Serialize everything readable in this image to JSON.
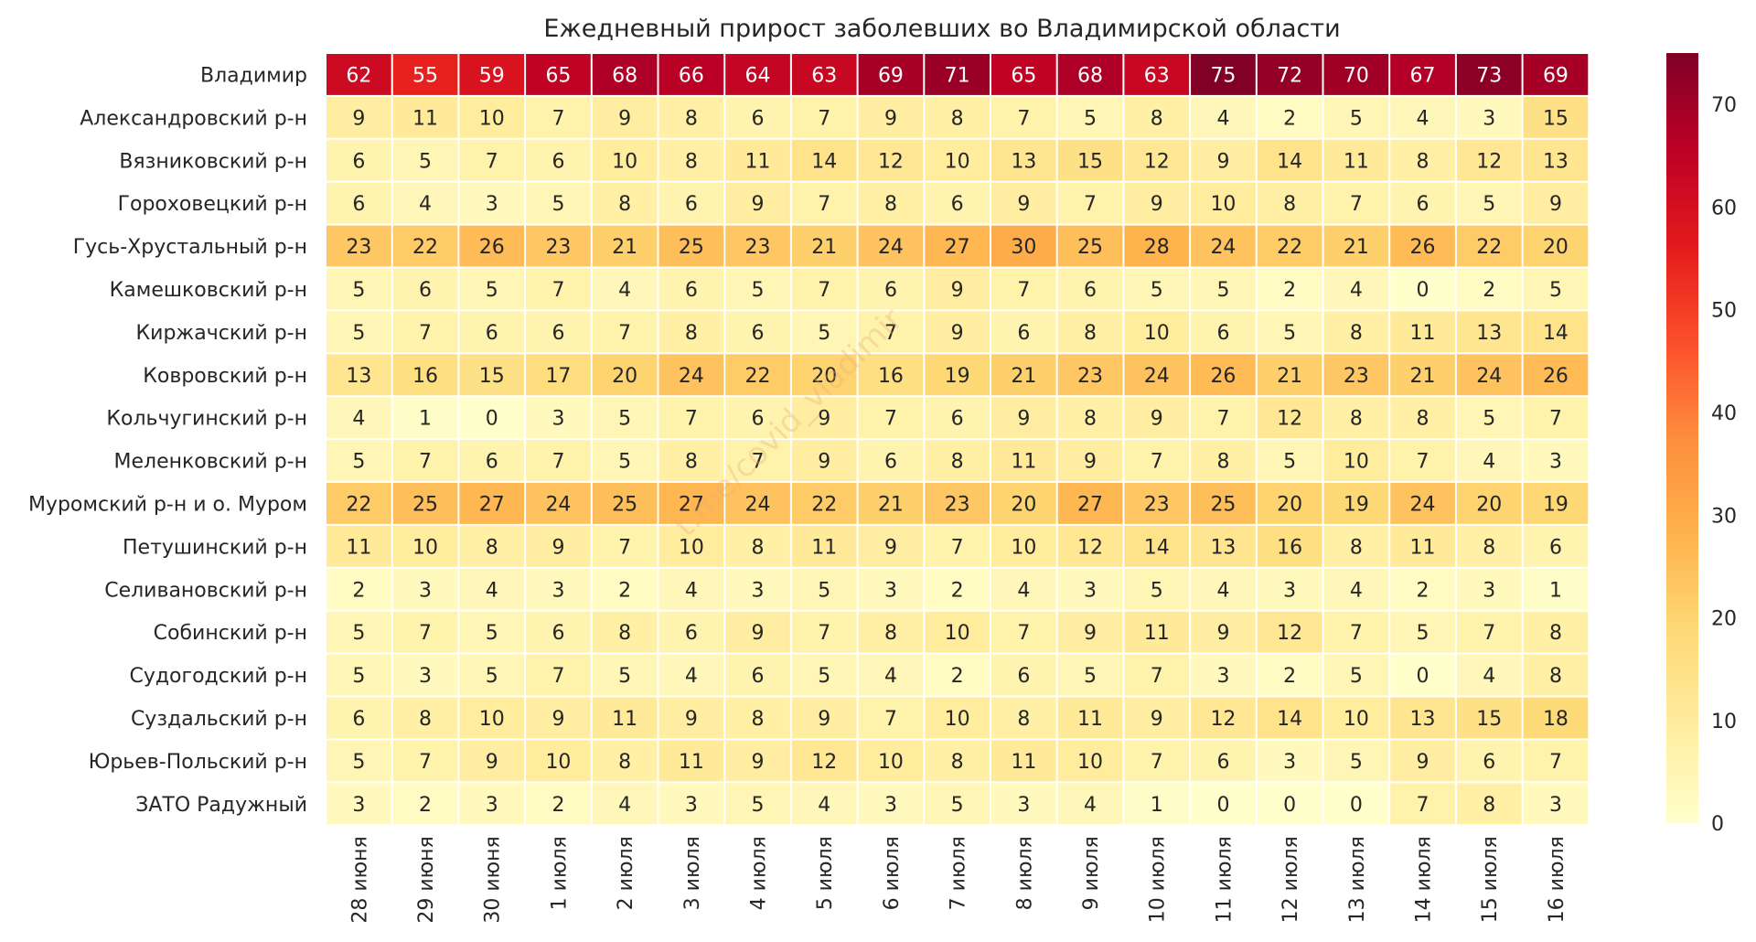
{
  "chart_data": {
    "type": "heatmap",
    "title": "Ежедневный прирост заболевших во Владимирской области",
    "rows": [
      "Владимир",
      "Александровский р-н",
      "Вязниковский р-н",
      "Гороховецкий р-н",
      "Гусь-Хрустальный р-н",
      "Камешковский р-н",
      "Киржачский р-н",
      "Ковровский р-н",
      "Кольчугинский р-н",
      "Меленковский р-н",
      "Муромский р-н и о. Муром",
      "Петушинский р-н",
      "Селивановский р-н",
      "Собинский р-н",
      "Судогодский р-н",
      "Суздальский р-н",
      "Юрьев-Польский р-н",
      "ЗАТО Радужный"
    ],
    "columns": [
      "28 июня",
      "29 июня",
      "30 июня",
      "1 июля",
      "2 июля",
      "3 июля",
      "4 июля",
      "5 июля",
      "6 июля",
      "7 июля",
      "8 июля",
      "9 июля",
      "10 июля",
      "11 июля",
      "12 июля",
      "13 июля",
      "14 июля",
      "15 июля",
      "16 июля"
    ],
    "values": [
      [
        62,
        55,
        59,
        65,
        68,
        66,
        64,
        63,
        69,
        71,
        65,
        68,
        63,
        75,
        72,
        70,
        67,
        73,
        69
      ],
      [
        9,
        11,
        10,
        7,
        9,
        8,
        6,
        7,
        9,
        8,
        7,
        5,
        8,
        4,
        2,
        5,
        4,
        3,
        15
      ],
      [
        6,
        5,
        7,
        6,
        10,
        8,
        11,
        14,
        12,
        10,
        13,
        15,
        12,
        9,
        14,
        11,
        8,
        12,
        13
      ],
      [
        6,
        4,
        3,
        5,
        8,
        6,
        9,
        7,
        8,
        6,
        9,
        7,
        9,
        10,
        8,
        7,
        6,
        5,
        9
      ],
      [
        23,
        22,
        26,
        23,
        21,
        25,
        23,
        21,
        24,
        27,
        30,
        25,
        28,
        24,
        22,
        21,
        26,
        22,
        20
      ],
      [
        5,
        6,
        5,
        7,
        4,
        6,
        5,
        7,
        6,
        9,
        7,
        6,
        5,
        5,
        2,
        4,
        0,
        2,
        5
      ],
      [
        5,
        7,
        6,
        6,
        7,
        8,
        6,
        5,
        7,
        9,
        6,
        8,
        10,
        6,
        5,
        8,
        11,
        13,
        14
      ],
      [
        13,
        16,
        15,
        17,
        20,
        24,
        22,
        20,
        16,
        19,
        21,
        23,
        24,
        26,
        21,
        23,
        21,
        24,
        26
      ],
      [
        4,
        1,
        0,
        3,
        5,
        7,
        6,
        9,
        7,
        6,
        9,
        8,
        9,
        7,
        12,
        8,
        8,
        5,
        7
      ],
      [
        5,
        7,
        6,
        7,
        5,
        8,
        7,
        9,
        6,
        8,
        11,
        9,
        7,
        8,
        5,
        10,
        7,
        4,
        3
      ],
      [
        22,
        25,
        27,
        24,
        25,
        27,
        24,
        22,
        21,
        23,
        20,
        27,
        23,
        25,
        20,
        19,
        24,
        20,
        19
      ],
      [
        11,
        10,
        8,
        9,
        7,
        10,
        8,
        11,
        9,
        7,
        10,
        12,
        14,
        13,
        16,
        8,
        11,
        8,
        6
      ],
      [
        2,
        3,
        4,
        3,
        2,
        4,
        3,
        5,
        3,
        2,
        4,
        3,
        5,
        4,
        3,
        4,
        2,
        3,
        1
      ],
      [
        5,
        7,
        5,
        6,
        8,
        6,
        9,
        7,
        8,
        10,
        7,
        9,
        11,
        9,
        12,
        7,
        5,
        7,
        8
      ],
      [
        5,
        3,
        5,
        7,
        5,
        4,
        6,
        5,
        4,
        2,
        6,
        5,
        7,
        3,
        2,
        5,
        0,
        4,
        8
      ],
      [
        6,
        8,
        10,
        9,
        11,
        9,
        8,
        9,
        7,
        10,
        8,
        11,
        9,
        12,
        14,
        10,
        13,
        15,
        18
      ],
      [
        5,
        7,
        9,
        10,
        8,
        11,
        9,
        12,
        10,
        8,
        11,
        10,
        7,
        6,
        3,
        5,
        9,
        6,
        7
      ],
      [
        3,
        2,
        3,
        2,
        4,
        3,
        5,
        4,
        3,
        5,
        3,
        4,
        1,
        0,
        0,
        0,
        7,
        8,
        3
      ]
    ],
    "colorbar": {
      "min": 0,
      "max": 75,
      "ticks": [
        0,
        10,
        20,
        30,
        40,
        50,
        60,
        70
      ]
    },
    "colormap": "YlOrRd",
    "watermark": "t.me/covid_vladimir"
  }
}
